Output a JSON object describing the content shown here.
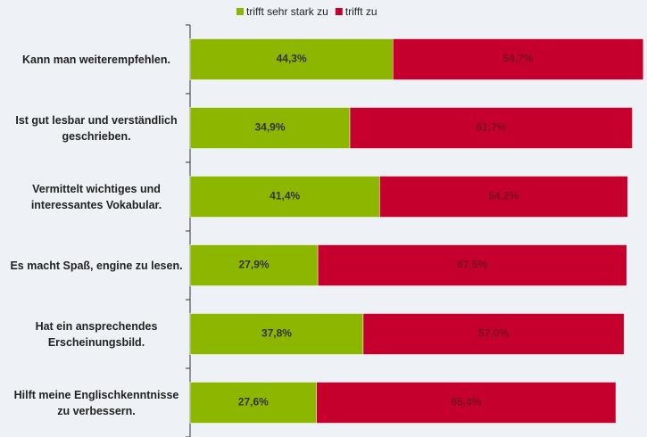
{
  "chart_data": {
    "type": "stacked-bar-horizontal",
    "categories": [
      "Kann man weiterempfehlen.",
      "Ist gut lesbar und verständlich geschrieben.",
      "Vermittelt wichtiges und interessantes Vokabular.",
      "Es macht Spaß, engine zu lesen.",
      "Hat ein ansprechendes Erscheinungsbild.",
      "Hilft meine Englischkenntnisse zu verbessern."
    ],
    "series": [
      {
        "name": "trifft sehr stark zu",
        "color": "#8db600",
        "values": [
          44.3,
          34.9,
          41.4,
          27.9,
          37.8,
          27.6
        ],
        "value_labels": [
          "44,3%",
          "34,9%",
          "41,4%",
          "27,9%",
          "37,8%",
          "27,6%"
        ]
      },
      {
        "name": "trifft zu",
        "color": "#c5002c",
        "values": [
          54.7,
          61.7,
          54.2,
          67.5,
          57.0,
          65.4
        ],
        "value_labels": [
          "54,7%",
          "61,7%",
          "54,2%",
          "67,5%",
          "57,0%",
          "65,4%"
        ]
      }
    ],
    "xlim": [
      0,
      100
    ],
    "legend": "top"
  }
}
